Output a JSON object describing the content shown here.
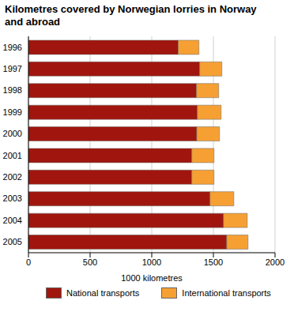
{
  "chart_data": {
    "type": "bar",
    "title": "Kilometres covered by Norwegian lorries in Norway and abroad",
    "orientation": "horizontal",
    "stacked": true,
    "grid": true,
    "x_label": "1000 kilometres",
    "categories": [
      "1996",
      "1997",
      "1998",
      "1999",
      "2000",
      "2001",
      "2002",
      "2003",
      "2004",
      "2005"
    ],
    "series": [
      {
        "name": "National transports",
        "color": "#a0160e",
        "values": [
          1215,
          1389,
          1363,
          1370,
          1365,
          1325,
          1325,
          1473,
          1582,
          1608
        ]
      },
      {
        "name": "International transports",
        "color": "#f6a033",
        "values": [
          168,
          180,
          180,
          193,
          185,
          180,
          180,
          193,
          193,
          173
        ]
      }
    ],
    "xlim": [
      0,
      2000
    ],
    "xticks": [
      0,
      500,
      1000,
      1500,
      2000
    ]
  }
}
